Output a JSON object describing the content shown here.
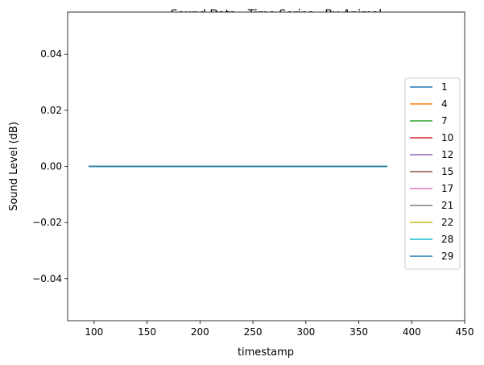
{
  "chart_data": {
    "type": "line",
    "title": "Sound Data - Time Series - By Animal",
    "xlabel": "timestamp",
    "ylabel": "Sound Level (dB)",
    "xlim": [
      75,
      450
    ],
    "ylim": [
      -0.055,
      0.055
    ],
    "xticks": [
      100,
      150,
      200,
      250,
      300,
      350,
      400,
      450
    ],
    "yticks": [
      -0.04,
      -0.02,
      0.0,
      0.02,
      0.04
    ],
    "ytick_labels": [
      "−0.04",
      "−0.02",
      "0.00",
      "0.02",
      "0.04"
    ],
    "grid": false,
    "legend_position": "right",
    "series": [
      {
        "name": "1",
        "color": "#1f77b4",
        "x": [
          95,
          377
        ],
        "y": [
          0,
          0
        ]
      },
      {
        "name": "4",
        "color": "#ff7f0e",
        "x": [
          95,
          377
        ],
        "y": [
          0,
          0
        ]
      },
      {
        "name": "7",
        "color": "#2ca02c",
        "x": [
          95,
          377
        ],
        "y": [
          0,
          0
        ]
      },
      {
        "name": "10",
        "color": "#d62728",
        "x": [
          95,
          377
        ],
        "y": [
          0,
          0
        ]
      },
      {
        "name": "12",
        "color": "#9467bd",
        "x": [
          95,
          377
        ],
        "y": [
          0,
          0
        ]
      },
      {
        "name": "15",
        "color": "#8c564b",
        "x": [
          95,
          377
        ],
        "y": [
          0,
          0
        ]
      },
      {
        "name": "17",
        "color": "#e377c2",
        "x": [
          95,
          377
        ],
        "y": [
          0,
          0
        ]
      },
      {
        "name": "21",
        "color": "#7f7f7f",
        "x": [
          95,
          377
        ],
        "y": [
          0,
          0
        ]
      },
      {
        "name": "22",
        "color": "#bcbd22",
        "x": [
          95,
          377
        ],
        "y": [
          0,
          0
        ]
      },
      {
        "name": "28",
        "color": "#17becf",
        "x": [
          95,
          377
        ],
        "y": [
          0,
          0
        ]
      },
      {
        "name": "29",
        "color": "#1f77b4",
        "x": [
          95,
          377
        ],
        "y": [
          0,
          0
        ]
      }
    ]
  }
}
